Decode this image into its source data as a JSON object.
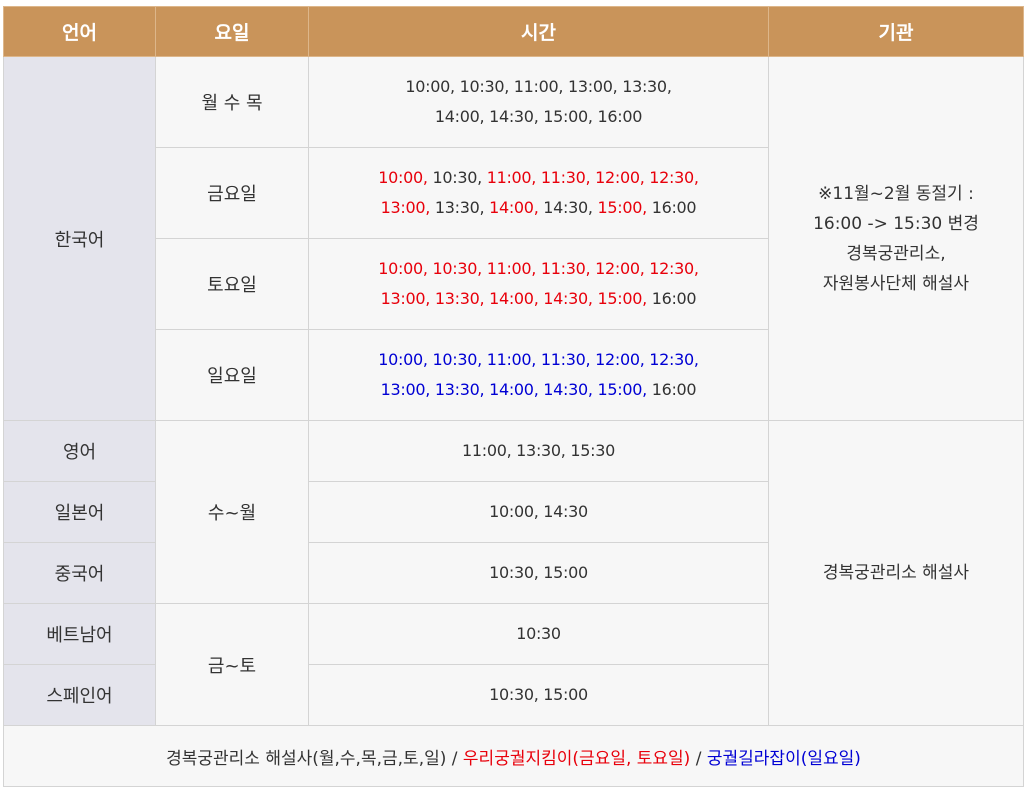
{
  "header": {
    "language": "언어",
    "day": "요일",
    "time": "시간",
    "org": "기관"
  },
  "korean": {
    "language": "한국어",
    "org_lines": [
      "※11월~2월 동절기 :",
      "16:00 -> 15:30 변경",
      "경복궁관리소,",
      "자원봉사단체 해설사"
    ],
    "rows": [
      {
        "day": "월 수 목",
        "lines": [
          [
            {
              "t": "10:00",
              "c": "blk"
            },
            {
              "t": "10:30",
              "c": "blk"
            },
            {
              "t": "11:00",
              "c": "blk"
            },
            {
              "t": "13:00",
              "c": "blk"
            },
            {
              "t": "13:30",
              "c": "blk"
            }
          ],
          [
            {
              "t": "14:00",
              "c": "blk"
            },
            {
              "t": "14:30",
              "c": "blk"
            },
            {
              "t": "15:00",
              "c": "blk"
            },
            {
              "t": "16:00",
              "c": "blk"
            }
          ]
        ]
      },
      {
        "day": "금요일",
        "lines": [
          [
            {
              "t": "10:00",
              "c": "red"
            },
            {
              "t": "10:30",
              "c": "blk"
            },
            {
              "t": "11:00",
              "c": "red"
            },
            {
              "t": "11:30",
              "c": "red"
            },
            {
              "t": "12:00",
              "c": "red"
            },
            {
              "t": "12:30",
              "c": "red"
            }
          ],
          [
            {
              "t": "13:00",
              "c": "red"
            },
            {
              "t": "13:30",
              "c": "blk"
            },
            {
              "t": "14:00",
              "c": "red"
            },
            {
              "t": "14:30",
              "c": "blk"
            },
            {
              "t": "15:00",
              "c": "red"
            },
            {
              "t": "16:00",
              "c": "blk"
            }
          ]
        ]
      },
      {
        "day": "토요일",
        "lines": [
          [
            {
              "t": "10:00",
              "c": "red"
            },
            {
              "t": "10:30",
              "c": "red"
            },
            {
              "t": "11:00",
              "c": "red"
            },
            {
              "t": "11:30",
              "c": "red"
            },
            {
              "t": "12:00",
              "c": "red"
            },
            {
              "t": "12:30",
              "c": "red"
            }
          ],
          [
            {
              "t": "13:00",
              "c": "red"
            },
            {
              "t": "13:30",
              "c": "red"
            },
            {
              "t": "14:00",
              "c": "red"
            },
            {
              "t": "14:30",
              "c": "red"
            },
            {
              "t": "15:00",
              "c": "red"
            },
            {
              "t": "16:00",
              "c": "blk"
            }
          ]
        ]
      },
      {
        "day": "일요일",
        "lines": [
          [
            {
              "t": "10:00",
              "c": "blue"
            },
            {
              "t": "10:30",
              "c": "blue"
            },
            {
              "t": "11:00",
              "c": "blue"
            },
            {
              "t": "11:30",
              "c": "blue"
            },
            {
              "t": "12:00",
              "c": "blue"
            },
            {
              "t": "12:30",
              "c": "blue"
            }
          ],
          [
            {
              "t": "13:00",
              "c": "blue"
            },
            {
              "t": "13:30",
              "c": "blue"
            },
            {
              "t": "14:00",
              "c": "blue"
            },
            {
              "t": "14:30",
              "c": "blue"
            },
            {
              "t": "15:00",
              "c": "blue"
            },
            {
              "t": "16:00",
              "c": "blk"
            }
          ]
        ]
      }
    ]
  },
  "foreign": {
    "org": "경복궁관리소 해설사",
    "day_group_1": "수~월",
    "day_group_2": "금~토",
    "rows": [
      {
        "language": "영어",
        "time": "11:00, 13:30, 15:30"
      },
      {
        "language": "일본어",
        "time": "10:00, 14:30"
      },
      {
        "language": "중국어",
        "time": "10:30, 15:00"
      },
      {
        "language": "베트남어",
        "time": "10:30"
      },
      {
        "language": "스페인어",
        "time": "10:30, 15:00"
      }
    ]
  },
  "footer": {
    "part1": "경복궁관리소 해설사(월,수,목,금,토,일)",
    "sep": " / ",
    "part2": "우리궁궐지킴이(금요일, 토요일)",
    "part3": "궁궐길라잡이(일요일)"
  },
  "colors": {
    "header_bg": "#c9945a",
    "language_bg": "#e4e4ec",
    "cell_bg": "#f7f7f7",
    "red_time": "#e8000b",
    "blue_time": "#0000d4"
  }
}
